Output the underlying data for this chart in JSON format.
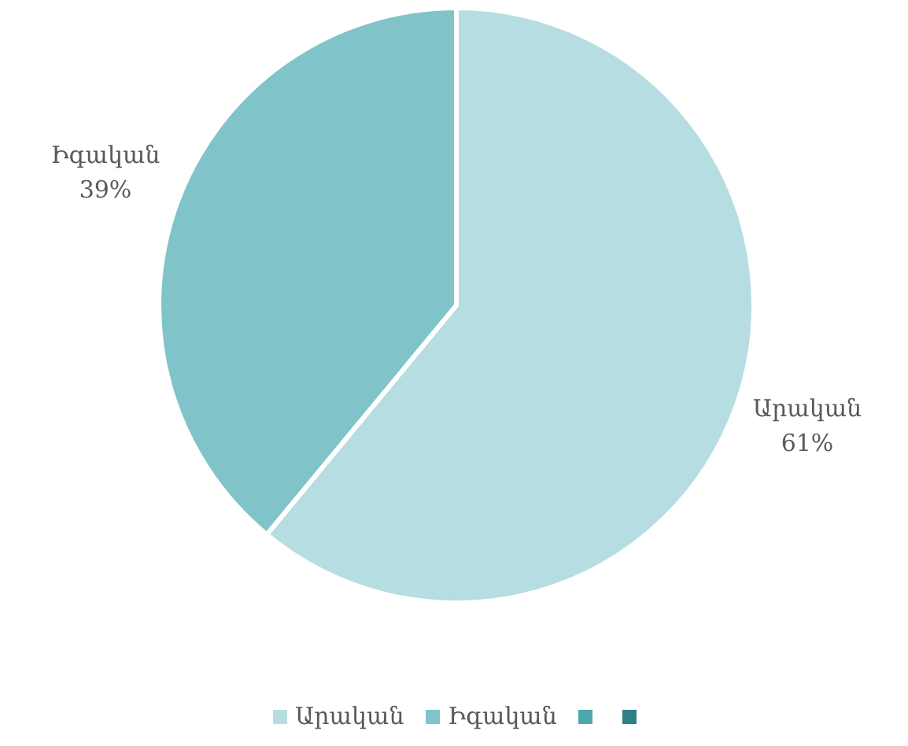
{
  "chart_data": {
    "type": "pie",
    "categories": [
      "Արական",
      "Իգական",
      null,
      null
    ],
    "values": [
      61,
      39,
      0,
      0
    ],
    "colors": [
      "#b6dde1",
      "#80c4c9",
      "#4ea8ae",
      "#2f7f87"
    ],
    "value_labels": [
      "61%",
      "39%",
      null,
      null
    ],
    "legend": "bottom"
  }
}
